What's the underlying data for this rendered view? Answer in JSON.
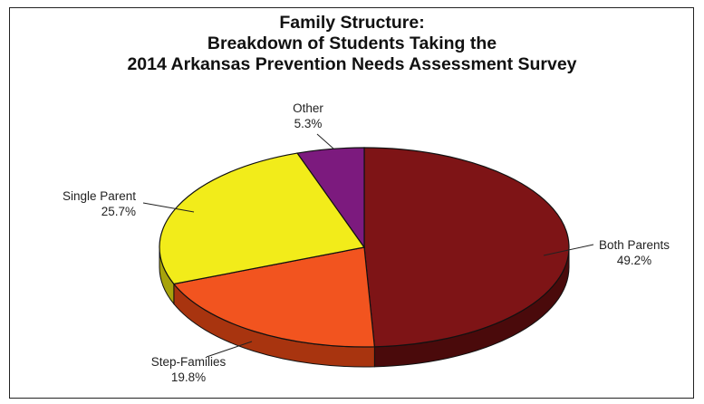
{
  "chart_data": {
    "type": "pie",
    "title_lines": [
      "Family Structure:",
      "Breakdown of Students Taking the",
      "2014 Arkansas Prevention Needs Assessment Survey"
    ],
    "slices": [
      {
        "label": "Both Parents",
        "value": 49.2,
        "value_text": "49.2%",
        "color": "#7e1416",
        "side_color": "#4a0a0b"
      },
      {
        "label": "Step-Families",
        "value": 19.8,
        "value_text": "19.8%",
        "color": "#f2541f",
        "side_color": "#a8340f"
      },
      {
        "label": "Single Parent",
        "value": 25.7,
        "value_text": "25.7%",
        "color": "#f2ec1a",
        "side_color": "#a8a30c"
      },
      {
        "label": "Other",
        "value": 5.3,
        "value_text": "5.3%",
        "color": "#7c1a7e",
        "side_color": "#4d0e4f"
      }
    ],
    "style": "3d-pie",
    "start": "12 o'clock",
    "direction": "clockwise",
    "labels": "outside-with-leader-lines"
  }
}
